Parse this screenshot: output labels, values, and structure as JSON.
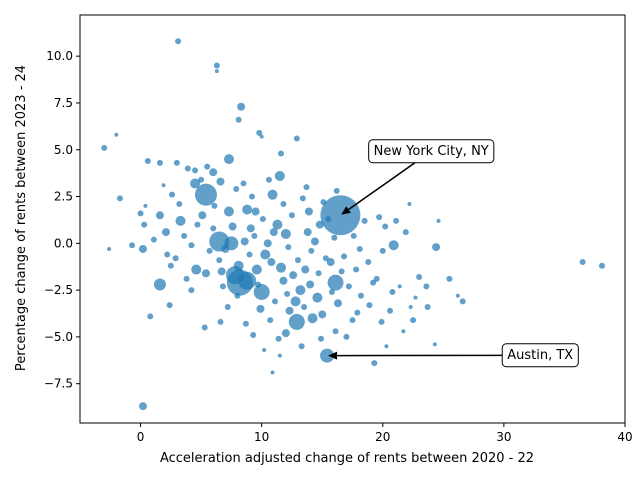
{
  "chart_data": {
    "type": "scatter",
    "title": "",
    "xlabel": "Acceleration adjusted change of rents between 2020 - 22",
    "ylabel": "Percentage change of rents between 2023 - 24",
    "xlim": [
      -5,
      40
    ],
    "ylim": [
      -9.6,
      12.2
    ],
    "xticks": [
      0,
      10,
      20,
      30,
      40
    ],
    "yticks": [
      -7.5,
      -5.0,
      -2.5,
      0.0,
      2.5,
      5.0,
      7.5,
      10.0
    ],
    "xtick_labels": [
      "0",
      "10",
      "20",
      "30",
      "40"
    ],
    "ytick_labels": [
      "−7.5",
      "−5.0",
      "−2.5",
      "0.0",
      "2.5",
      "5.0",
      "7.5",
      "10.0"
    ],
    "grid": false,
    "marker_color": "#1f77b4",
    "points": [
      {
        "x": 16.5,
        "y": 1.5,
        "s": 20
      },
      {
        "x": 15.4,
        "y": -6.0,
        "s": 7
      },
      {
        "x": 5.4,
        "y": 2.6,
        "s": 11
      },
      {
        "x": 6.5,
        "y": 0.1,
        "s": 10
      },
      {
        "x": 8.2,
        "y": -2.1,
        "s": 13
      },
      {
        "x": 7.8,
        "y": -1.7,
        "s": 9
      },
      {
        "x": 8.8,
        "y": -2.0,
        "s": 9
      },
      {
        "x": 10.0,
        "y": -2.6,
        "s": 8
      },
      {
        "x": 12.9,
        "y": -4.2,
        "s": 8
      },
      {
        "x": 16.1,
        "y": -2.1,
        "s": 8
      },
      {
        "x": 1.6,
        "y": -2.2,
        "s": 6
      },
      {
        "x": 7.5,
        "y": 0.0,
        "s": 7
      },
      {
        "x": 6.0,
        "y": 3.8,
        "s": 4
      },
      {
        "x": 10.9,
        "y": 2.6,
        "s": 5
      },
      {
        "x": 11.5,
        "y": 3.6,
        "s": 5
      },
      {
        "x": 14.2,
        "y": -4.0,
        "s": 5
      },
      {
        "x": 12.8,
        "y": -3.1,
        "s": 5
      },
      {
        "x": 9.6,
        "y": -1.4,
        "s": 5
      },
      {
        "x": 10.3,
        "y": -0.6,
        "s": 5
      },
      {
        "x": 12.0,
        "y": 0.5,
        "s": 5
      },
      {
        "x": 14.8,
        "y": 1.0,
        "s": 4
      },
      {
        "x": 3.3,
        "y": 1.2,
        "s": 5
      },
      {
        "x": 4.6,
        "y": -1.4,
        "s": 5
      },
      {
        "x": 7.3,
        "y": 1.7,
        "s": 5
      },
      {
        "x": 0.2,
        "y": -8.7,
        "s": 4
      },
      {
        "x": 0.2,
        "y": -0.3,
        "s": 4
      },
      {
        "x": 3.1,
        "y": 10.8,
        "s": 3
      },
      {
        "x": 6.3,
        "y": 9.5,
        "s": 3
      },
      {
        "x": 6.3,
        "y": 9.2,
        "s": 2
      },
      {
        "x": 8.3,
        "y": 7.3,
        "s": 4
      },
      {
        "x": 8.1,
        "y": 6.6,
        "s": 3
      },
      {
        "x": 9.8,
        "y": 5.9,
        "s": 3
      },
      {
        "x": 10.0,
        "y": 5.7,
        "s": 2
      },
      {
        "x": 12.9,
        "y": 5.6,
        "s": 3
      },
      {
        "x": 11.6,
        "y": 4.8,
        "s": 3
      },
      {
        "x": 7.3,
        "y": 4.5,
        "s": 5
      },
      {
        "x": 5.5,
        "y": 4.1,
        "s": 3
      },
      {
        "x": 3.9,
        "y": 4.0,
        "s": 3
      },
      {
        "x": 4.5,
        "y": 3.9,
        "s": 3
      },
      {
        "x": 4.5,
        "y": 3.2,
        "s": 5
      },
      {
        "x": 6.6,
        "y": 3.3,
        "s": 4
      },
      {
        "x": 1.6,
        "y": 4.3,
        "s": 3
      },
      {
        "x": 0.6,
        "y": 4.4,
        "s": 3
      },
      {
        "x": -3.0,
        "y": 5.1,
        "s": 3
      },
      {
        "x": -2.0,
        "y": 5.8,
        "s": 2
      },
      {
        "x": -1.7,
        "y": 2.4,
        "s": 3
      },
      {
        "x": 0.0,
        "y": 1.6,
        "s": 3
      },
      {
        "x": 0.3,
        "y": 1.0,
        "s": 3
      },
      {
        "x": -0.7,
        "y": -0.1,
        "s": 3
      },
      {
        "x": -2.6,
        "y": -0.3,
        "s": 2
      },
      {
        "x": 0.8,
        "y": -3.9,
        "s": 3
      },
      {
        "x": 2.4,
        "y": -3.3,
        "s": 3
      },
      {
        "x": 4.2,
        "y": -0.1,
        "s": 3
      },
      {
        "x": 2.1,
        "y": 0.6,
        "s": 4
      },
      {
        "x": 2.9,
        "y": -0.8,
        "s": 3
      },
      {
        "x": 5.4,
        "y": -1.6,
        "s": 4
      },
      {
        "x": 6.5,
        "y": -0.9,
        "s": 3
      },
      {
        "x": 6.7,
        "y": -1.5,
        "s": 4
      },
      {
        "x": 6.8,
        "y": -2.3,
        "s": 3
      },
      {
        "x": 5.3,
        "y": -4.5,
        "s": 3
      },
      {
        "x": 7.2,
        "y": -3.4,
        "s": 3
      },
      {
        "x": 6.6,
        "y": -4.2,
        "s": 3
      },
      {
        "x": 8.7,
        "y": -4.3,
        "s": 3
      },
      {
        "x": 8.1,
        "y": -1.2,
        "s": 5
      },
      {
        "x": 8.6,
        "y": 0.1,
        "s": 4
      },
      {
        "x": 9.1,
        "y": 0.8,
        "s": 4
      },
      {
        "x": 9.5,
        "y": 1.7,
        "s": 4
      },
      {
        "x": 10.5,
        "y": 0.0,
        "s": 4
      },
      {
        "x": 10.8,
        "y": -1.0,
        "s": 4
      },
      {
        "x": 11.6,
        "y": -1.3,
        "s": 5
      },
      {
        "x": 11.8,
        "y": -2.0,
        "s": 4
      },
      {
        "x": 12.3,
        "y": -3.6,
        "s": 4
      },
      {
        "x": 12.0,
        "y": -4.8,
        "s": 4
      },
      {
        "x": 11.5,
        "y": -6.0,
        "s": 2
      },
      {
        "x": 10.9,
        "y": -6.9,
        "s": 2
      },
      {
        "x": 10.2,
        "y": -5.7,
        "s": 2
      },
      {
        "x": 13.2,
        "y": -2.5,
        "s": 5
      },
      {
        "x": 13.6,
        "y": -1.4,
        "s": 4
      },
      {
        "x": 13.8,
        "y": 0.6,
        "s": 4
      },
      {
        "x": 13.9,
        "y": 1.7,
        "s": 4
      },
      {
        "x": 14.6,
        "y": -2.9,
        "s": 5
      },
      {
        "x": 15.0,
        "y": -3.8,
        "s": 4
      },
      {
        "x": 15.7,
        "y": -1.0,
        "s": 4
      },
      {
        "x": 16.3,
        "y": -3.2,
        "s": 4
      },
      {
        "x": 17.2,
        "y": -2.3,
        "s": 3
      },
      {
        "x": 17.5,
        "y": -4.1,
        "s": 3
      },
      {
        "x": 17.0,
        "y": -5.0,
        "s": 3
      },
      {
        "x": 16.1,
        "y": -4.7,
        "s": 3
      },
      {
        "x": 18.2,
        "y": -2.8,
        "s": 3
      },
      {
        "x": 18.8,
        "y": -1.0,
        "s": 3
      },
      {
        "x": 19.5,
        "y": -1.9,
        "s": 3
      },
      {
        "x": 20.0,
        "y": -0.4,
        "s": 3
      },
      {
        "x": 19.3,
        "y": -6.4,
        "s": 3
      },
      {
        "x": 20.3,
        "y": -5.5,
        "s": 2
      },
      {
        "x": 20.6,
        "y": -3.6,
        "s": 3
      },
      {
        "x": 21.4,
        "y": -2.3,
        "s": 2
      },
      {
        "x": 22.3,
        "y": -3.4,
        "s": 2
      },
      {
        "x": 23.0,
        "y": -1.8,
        "s": 3
      },
      {
        "x": 23.6,
        "y": -2.3,
        "s": 3
      },
      {
        "x": 24.4,
        "y": -0.2,
        "s": 4
      },
      {
        "x": 25.5,
        "y": -1.9,
        "s": 3
      },
      {
        "x": 26.2,
        "y": -2.8,
        "s": 2
      },
      {
        "x": 26.6,
        "y": -3.1,
        "s": 3
      },
      {
        "x": 23.7,
        "y": -3.4,
        "s": 3
      },
      {
        "x": 22.5,
        "y": -4.1,
        "s": 3
      },
      {
        "x": 24.3,
        "y": -5.4,
        "s": 2
      },
      {
        "x": 21.1,
        "y": 1.2,
        "s": 3
      },
      {
        "x": 21.9,
        "y": 0.6,
        "s": 3
      },
      {
        "x": 22.2,
        "y": 2.1,
        "s": 2
      },
      {
        "x": 24.6,
        "y": 1.2,
        "s": 2
      },
      {
        "x": 20.9,
        "y": -0.1,
        "s": 5
      },
      {
        "x": 19.7,
        "y": 1.4,
        "s": 3
      },
      {
        "x": 20.2,
        "y": 0.9,
        "s": 3
      },
      {
        "x": 36.5,
        "y": -1.0,
        "s": 3
      },
      {
        "x": 38.1,
        "y": -1.2,
        "s": 3
      },
      {
        "x": 1.6,
        "y": 1.5,
        "s": 4
      },
      {
        "x": 2.6,
        "y": 2.6,
        "s": 3
      },
      {
        "x": 3.0,
        "y": 4.3,
        "s": 3
      },
      {
        "x": 5.0,
        "y": 3.4,
        "s": 3
      },
      {
        "x": 6.1,
        "y": 2.0,
        "s": 3
      },
      {
        "x": 5.1,
        "y": 1.5,
        "s": 4
      },
      {
        "x": 8.5,
        "y": 3.2,
        "s": 3
      },
      {
        "x": 9.2,
        "y": 2.5,
        "s": 3
      },
      {
        "x": 10.6,
        "y": 3.4,
        "s": 3
      },
      {
        "x": 11.8,
        "y": 2.1,
        "s": 3
      },
      {
        "x": 12.5,
        "y": 1.5,
        "s": 3
      },
      {
        "x": 13.4,
        "y": 2.4,
        "s": 3
      },
      {
        "x": 15.1,
        "y": 2.2,
        "s": 3
      },
      {
        "x": 16.2,
        "y": 2.8,
        "s": 3
      },
      {
        "x": 14.4,
        "y": 0.1,
        "s": 4
      },
      {
        "x": 15.3,
        "y": -0.8,
        "s": 3
      },
      {
        "x": 12.2,
        "y": -0.2,
        "s": 3
      },
      {
        "x": 11.0,
        "y": 0.6,
        "s": 4
      },
      {
        "x": 9.9,
        "y": -3.5,
        "s": 4
      },
      {
        "x": 10.7,
        "y": -4.1,
        "s": 3
      },
      {
        "x": 9.3,
        "y": -4.9,
        "s": 3
      },
      {
        "x": 11.4,
        "y": -5.1,
        "s": 3
      },
      {
        "x": 13.3,
        "y": -5.5,
        "s": 3
      },
      {
        "x": 14.9,
        "y": -5.1,
        "s": 3
      },
      {
        "x": 16.8,
        "y": -0.7,
        "s": 3
      },
      {
        "x": 17.8,
        "y": -1.4,
        "s": 3
      },
      {
        "x": 18.5,
        "y": 1.2,
        "s": 3
      },
      {
        "x": 17.6,
        "y": 0.4,
        "s": 3
      },
      {
        "x": 4.2,
        "y": -2.5,
        "s": 3
      },
      {
        "x": 3.6,
        "y": 0.4,
        "s": 3
      },
      {
        "x": 2.5,
        "y": -1.2,
        "s": 3
      },
      {
        "x": 1.1,
        "y": 0.2,
        "s": 3
      },
      {
        "x": 7.6,
        "y": 0.9,
        "s": 4
      },
      {
        "x": 9.4,
        "y": 0.4,
        "s": 3
      },
      {
        "x": 9.0,
        "y": -0.6,
        "s": 3
      },
      {
        "x": 12.6,
        "y": -1.7,
        "s": 4
      },
      {
        "x": 14.0,
        "y": -2.2,
        "s": 4
      },
      {
        "x": 13.0,
        "y": -0.9,
        "s": 3
      },
      {
        "x": 15.8,
        "y": -2.6,
        "s": 3
      },
      {
        "x": 18.9,
        "y": -3.3,
        "s": 3
      },
      {
        "x": 19.9,
        "y": -4.2,
        "s": 3
      },
      {
        "x": 21.7,
        "y": -4.7,
        "s": 2
      },
      {
        "x": 22.7,
        "y": -2.9,
        "s": 2
      },
      {
        "x": 6.0,
        "y": 0.8,
        "s": 3
      },
      {
        "x": 7.9,
        "y": 2.9,
        "s": 3
      },
      {
        "x": 10.1,
        "y": 1.3,
        "s": 3
      },
      {
        "x": 11.3,
        "y": 1.0,
        "s": 5
      },
      {
        "x": 13.7,
        "y": 3.0,
        "s": 3
      },
      {
        "x": 8.8,
        "y": 1.8,
        "s": 5
      },
      {
        "x": 3.2,
        "y": 2.1,
        "s": 3
      },
      {
        "x": 1.9,
        "y": 3.1,
        "s": 2
      },
      {
        "x": 0.4,
        "y": 2.0,
        "s": 2
      },
      {
        "x": 5.7,
        "y": -0.4,
        "s": 3
      },
      {
        "x": 7.0,
        "y": -0.3,
        "s": 4
      },
      {
        "x": 8.0,
        "y": -2.8,
        "s": 3
      },
      {
        "x": 9.7,
        "y": -2.2,
        "s": 3
      },
      {
        "x": 11.1,
        "y": -3.1,
        "s": 3
      },
      {
        "x": 12.1,
        "y": -2.7,
        "s": 3
      },
      {
        "x": 13.5,
        "y": -3.4,
        "s": 3
      },
      {
        "x": 14.7,
        "y": -1.6,
        "s": 3
      },
      {
        "x": 16.6,
        "y": -1.5,
        "s": 3
      },
      {
        "x": 17.9,
        "y": -3.7,
        "s": 3
      },
      {
        "x": 20.8,
        "y": -2.6,
        "s": 3
      },
      {
        "x": 19.2,
        "y": -2.1,
        "s": 3
      },
      {
        "x": 18.1,
        "y": -0.3,
        "s": 3
      },
      {
        "x": 16.0,
        "y": 0.3,
        "s": 3
      },
      {
        "x": 15.5,
        "y": 1.3,
        "s": 3
      },
      {
        "x": 14.1,
        "y": -0.4,
        "s": 3
      },
      {
        "x": 4.7,
        "y": 1.0,
        "s": 3
      },
      {
        "x": 2.2,
        "y": -0.6,
        "s": 3
      },
      {
        "x": 3.8,
        "y": -1.9,
        "s": 3
      }
    ],
    "annotations": [
      {
        "text": "New York City, NY",
        "point": [
          16.5,
          1.5
        ],
        "label_at": [
          24.0,
          5.0
        ]
      },
      {
        "text": "Austin, TX",
        "point": [
          15.4,
          -6.0
        ],
        "label_at": [
          33.0,
          -5.9
        ]
      }
    ]
  }
}
